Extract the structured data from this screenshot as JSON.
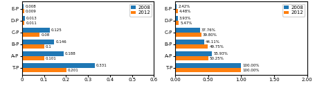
{
  "chart_data": [
    {
      "type": "bar",
      "orientation": "horizontal",
      "categories": [
        "T-P",
        "A-P",
        "B-P",
        "C-P",
        "D-P",
        "E-P"
      ],
      "series": [
        {
          "name": "2008",
          "values": [
            0.331,
            0.188,
            0.146,
            0.125,
            0.013,
            0.008
          ]
        },
        {
          "name": "2012",
          "values": [
            0.201,
            0.101,
            0.1,
            0.08,
            0.011,
            0.009
          ]
        }
      ],
      "xlim": [
        0,
        0.6
      ],
      "xticks": [
        0,
        0.1,
        0.2,
        0.3,
        0.4,
        0.5,
        0.6
      ],
      "data_labels": true,
      "legend": "upper right"
    },
    {
      "type": "bar",
      "orientation": "horizontal",
      "categories": [
        "T-P",
        "A-P",
        "B-P",
        "C-P",
        "D-P",
        "E-P"
      ],
      "series": [
        {
          "name": "2008",
          "values": [
            1.0,
            0.5593,
            0.4411,
            0.3776,
            0.0393,
            0.0242
          ],
          "value_labels": [
            "100.00%",
            "55.93%",
            "44.11%",
            "37.76%",
            "3.93%",
            "2.42%"
          ]
        },
        {
          "name": "2012",
          "values": [
            1.0,
            0.5025,
            0.4975,
            0.398,
            0.0547,
            0.0448
          ],
          "value_labels": [
            "100.00%",
            "50.25%",
            "49.75%",
            "39.80%",
            "5.47%",
            "4.48%"
          ]
        }
      ],
      "xlim": [
        0,
        2.0
      ],
      "xticks": [
        {
          "value": 0,
          "label": "0.00"
        },
        {
          "value": 0.5,
          "label": "0.50"
        },
        {
          "value": 1.0,
          "label": "1.00"
        },
        {
          "value": 1.5,
          "label": "1.50"
        },
        {
          "value": 2.0,
          "label": "2.00"
        }
      ],
      "data_labels": true,
      "legend": "upper right"
    }
  ]
}
